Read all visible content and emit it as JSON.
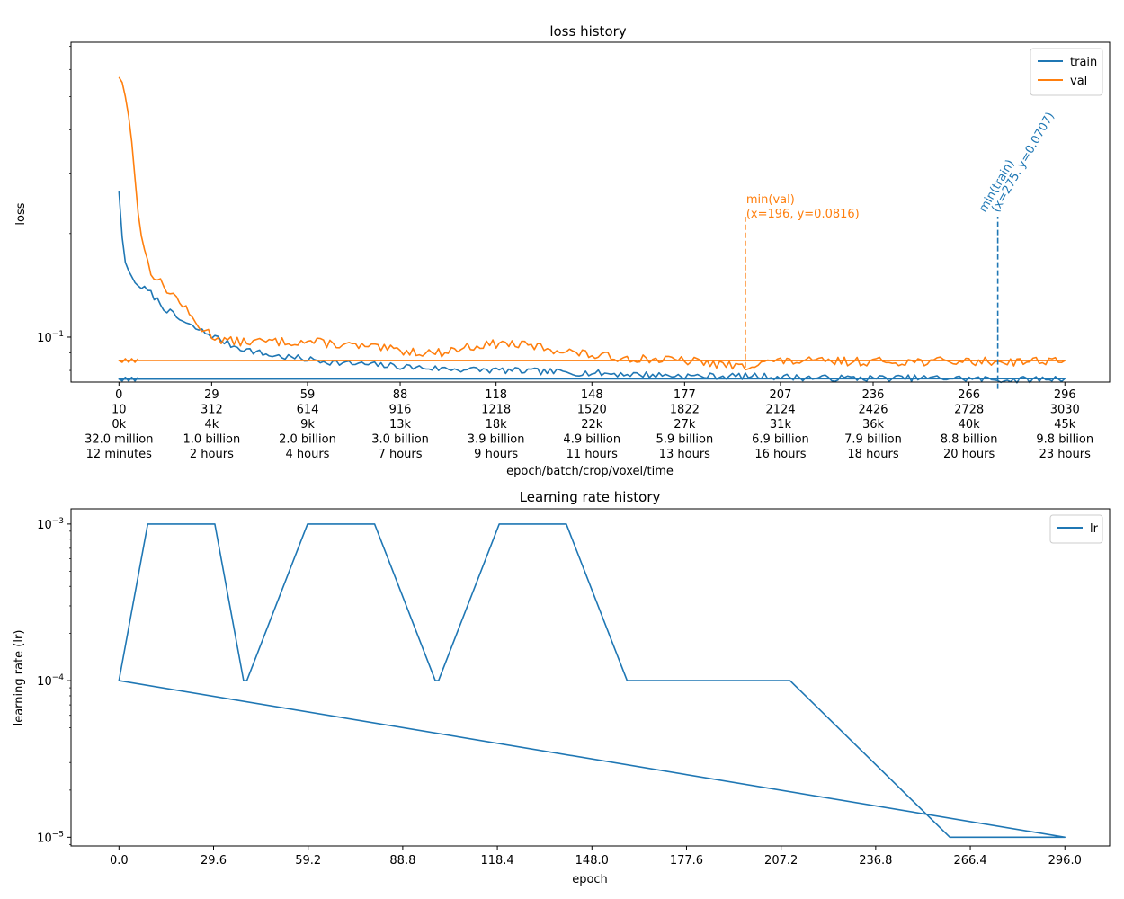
{
  "chart_data": [
    {
      "type": "line",
      "title": "loss history",
      "xlabel": "epoch/batch/crop/voxel/time",
      "ylabel": "loss",
      "yscale": "log",
      "ylim": [
        0.074,
        0.72
      ],
      "xlim": [
        -15,
        310
      ],
      "grid": false,
      "legend_position": "top-right",
      "y_major_tick_labels": [
        {
          "value": 0.1,
          "base": "10",
          "exp": "−1"
        }
      ],
      "x_tick_columns": [
        {
          "x": 0,
          "lines": [
            "0",
            "10",
            "0k",
            "32.0 million",
            "12 minutes"
          ]
        },
        {
          "x": 29,
          "lines": [
            "29",
            "312",
            "4k",
            "1.0 billion",
            "2 hours"
          ]
        },
        {
          "x": 59,
          "lines": [
            "59",
            "614",
            "9k",
            "2.0 billion",
            "4 hours"
          ]
        },
        {
          "x": 88,
          "lines": [
            "88",
            "916",
            "13k",
            "3.0 billion",
            "7 hours"
          ]
        },
        {
          "x": 118,
          "lines": [
            "118",
            "1218",
            "18k",
            "3.9 billion",
            "9 hours"
          ]
        },
        {
          "x": 148,
          "lines": [
            "148",
            "1520",
            "22k",
            "4.9 billion",
            "11 hours"
          ]
        },
        {
          "x": 177,
          "lines": [
            "177",
            "1822",
            "27k",
            "5.9 billion",
            "13 hours"
          ]
        },
        {
          "x": 207,
          "lines": [
            "207",
            "2124",
            "31k",
            "6.9 billion",
            "16 hours"
          ]
        },
        {
          "x": 236,
          "lines": [
            "236",
            "2426",
            "36k",
            "7.9 billion",
            "18 hours"
          ]
        },
        {
          "x": 266,
          "lines": [
            "266",
            "2728",
            "40k",
            "8.8 billion",
            "20 hours"
          ]
        },
        {
          "x": 296,
          "lines": [
            "296",
            "3030",
            "45k",
            "9.8 billion",
            "23 hours"
          ]
        }
      ],
      "series": [
        {
          "name": "train",
          "color": "#1f77b4",
          "points": [
            [
              0,
              0.265
            ],
            [
              1,
              0.195
            ],
            [
              2,
              0.165
            ],
            [
              3,
              0.156
            ],
            [
              4,
              0.15
            ],
            [
              5,
              0.144
            ],
            [
              6,
              0.141
            ],
            [
              7,
              0.14
            ],
            [
              8,
              0.138
            ],
            [
              10,
              0.134
            ],
            [
              12,
              0.128
            ],
            [
              14,
              0.122
            ],
            [
              16,
              0.118
            ],
            [
              18,
              0.114
            ],
            [
              20,
              0.111
            ],
            [
              22,
              0.108
            ],
            [
              24,
              0.106
            ],
            [
              26,
              0.104
            ],
            [
              28,
              0.102
            ],
            [
              30,
              0.1
            ],
            [
              32,
              0.098
            ],
            [
              35,
              0.095
            ],
            [
              38,
              0.093
            ],
            [
              42,
              0.091
            ],
            [
              46,
              0.089
            ],
            [
              50,
              0.088
            ],
            [
              55,
              0.087
            ],
            [
              60,
              0.086
            ],
            [
              65,
              0.085
            ],
            [
              70,
              0.084
            ],
            [
              80,
              0.083
            ],
            [
              90,
              0.082
            ],
            [
              100,
              0.081
            ],
            [
              120,
              0.08
            ],
            [
              140,
              0.079
            ],
            [
              160,
              0.078
            ],
            [
              180,
              0.077
            ],
            [
              200,
              0.077
            ],
            [
              220,
              0.076
            ],
            [
              240,
              0.076
            ],
            [
              260,
              0.076
            ],
            [
              280,
              0.075
            ],
            [
              296,
              0.076
            ]
          ],
          "noise": 0.022
        },
        {
          "name": "val",
          "color": "#ff7f0e",
          "points": [
            [
              0,
              0.57
            ],
            [
              1,
              0.55
            ],
            [
              2,
              0.5
            ],
            [
              3,
              0.44
            ],
            [
              4,
              0.37
            ],
            [
              5,
              0.29
            ],
            [
              6,
              0.23
            ],
            [
              7,
              0.2
            ],
            [
              8,
              0.18
            ],
            [
              9,
              0.165
            ],
            [
              10,
              0.155
            ],
            [
              12,
              0.148
            ],
            [
              14,
              0.14
            ],
            [
              16,
              0.135
            ],
            [
              18,
              0.13
            ],
            [
              20,
              0.124
            ],
            [
              22,
              0.116
            ],
            [
              24,
              0.11
            ],
            [
              26,
              0.106
            ],
            [
              28,
              0.103
            ],
            [
              30,
              0.1
            ],
            [
              33,
              0.098
            ],
            [
              36,
              0.097
            ],
            [
              40,
              0.097
            ],
            [
              45,
              0.097
            ],
            [
              50,
              0.097
            ],
            [
              55,
              0.097
            ],
            [
              60,
              0.097
            ],
            [
              65,
              0.096
            ],
            [
              70,
              0.095
            ],
            [
              80,
              0.093
            ],
            [
              90,
              0.091
            ],
            [
              100,
              0.09
            ],
            [
              110,
              0.094
            ],
            [
              120,
              0.096
            ],
            [
              130,
              0.094
            ],
            [
              140,
              0.091
            ],
            [
              150,
              0.088
            ],
            [
              160,
              0.087
            ],
            [
              170,
              0.086
            ],
            [
              180,
              0.085
            ],
            [
              196,
              0.0816
            ],
            [
              200,
              0.085
            ],
            [
              210,
              0.085
            ],
            [
              220,
              0.085
            ],
            [
              240,
              0.085
            ],
            [
              260,
              0.085
            ],
            [
              280,
              0.085
            ],
            [
              296,
              0.086
            ]
          ],
          "noise": 0.03
        }
      ],
      "wrap_segments": [
        {
          "series": "train",
          "from": [
            296,
            0.076
          ],
          "to": [
            0,
            0.0755
          ]
        },
        {
          "series": "val",
          "from": [
            296,
            0.086
          ],
          "to": [
            0,
            0.0855
          ]
        }
      ],
      "annotations": [
        {
          "series": "val",
          "x": 196,
          "y": 0.0816,
          "top": 0.224,
          "lines": [
            "min(val)",
            "(x=196, y=0.0816)"
          ],
          "rotated": false
        },
        {
          "series": "train",
          "x": 275,
          "y": 0.0707,
          "top": 0.224,
          "lines": [
            "min(train)",
            "(x=275, y=0.0707)"
          ],
          "rotated": true
        }
      ]
    },
    {
      "type": "line",
      "title": "Learning rate history",
      "xlabel": "epoch",
      "ylabel": "learning rate (lr)",
      "yscale": "log",
      "ylim": [
        8.8e-06,
        0.00125
      ],
      "xlim": [
        -15,
        310
      ],
      "grid": false,
      "legend_position": "top-right",
      "x_ticks": [
        0.0,
        29.6,
        59.2,
        88.8,
        118.4,
        148.0,
        177.6,
        207.2,
        236.8,
        266.4,
        296.0
      ],
      "y_major_tick_labels": [
        {
          "value": 0.001,
          "base": "10",
          "exp": "−3"
        },
        {
          "value": 0.0001,
          "base": "10",
          "exp": "−4"
        },
        {
          "value": 1e-05,
          "base": "10",
          "exp": "−5"
        }
      ],
      "series": [
        {
          "name": "lr",
          "color": "#1f77b4",
          "points": [
            [
              0,
              0.0001
            ],
            [
              9,
              0.001
            ],
            [
              30,
              0.001
            ],
            [
              39,
              0.0001
            ],
            [
              40,
              0.0001
            ],
            [
              59,
              0.001
            ],
            [
              80,
              0.001
            ],
            [
              99,
              0.0001
            ],
            [
              100,
              0.0001
            ],
            [
              119,
              0.001
            ],
            [
              140,
              0.001
            ],
            [
              159,
              0.0001
            ],
            [
              210,
              0.0001
            ],
            [
              260,
              1e-05
            ],
            [
              296,
              1e-05
            ],
            [
              0,
              0.0001
            ]
          ]
        }
      ]
    }
  ]
}
